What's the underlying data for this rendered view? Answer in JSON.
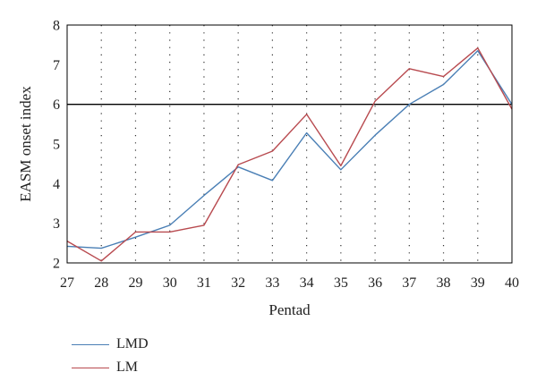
{
  "chart_data": {
    "type": "line",
    "xlabel": "Pentad",
    "ylabel": "EASM onset index",
    "x": [
      27,
      28,
      29,
      30,
      31,
      32,
      33,
      34,
      35,
      36,
      37,
      38,
      39,
      40
    ],
    "xlim": [
      27,
      40
    ],
    "ylim": [
      2,
      8
    ],
    "yticks": [
      2,
      3,
      4,
      5,
      6,
      7,
      8
    ],
    "grid": "vertical dotted lines at each pentad",
    "reference_line": {
      "y": 6,
      "color": "#000000"
    },
    "series": [
      {
        "name": "LMD",
        "color": "#4a7fb5",
        "values": [
          2.42,
          2.37,
          2.65,
          2.95,
          3.7,
          4.42,
          4.08,
          5.28,
          4.35,
          5.22,
          6.0,
          6.5,
          7.35,
          6.0
        ]
      },
      {
        "name": "LM",
        "color": "#b84a4f",
        "values": [
          2.55,
          2.05,
          2.78,
          2.78,
          2.95,
          4.48,
          4.82,
          5.75,
          4.45,
          6.08,
          6.9,
          6.7,
          7.42,
          5.88
        ]
      }
    ],
    "legend_position": "bottom-left"
  }
}
